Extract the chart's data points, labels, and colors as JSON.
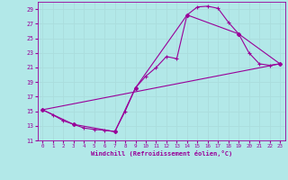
{
  "xlabel": "Windchill (Refroidissement éolien,°C)",
  "ylabel": "",
  "bg_color": "#b2e8e8",
  "line_color": "#990099",
  "grid_color": "#aadddd",
  "xlim": [
    -0.5,
    23.5
  ],
  "ylim": [
    11,
    30
  ],
  "xticks": [
    0,
    1,
    2,
    3,
    4,
    5,
    6,
    7,
    8,
    9,
    10,
    11,
    12,
    13,
    14,
    15,
    16,
    17,
    18,
    19,
    20,
    21,
    22,
    23
  ],
  "yticks": [
    11,
    13,
    15,
    17,
    19,
    21,
    23,
    25,
    27,
    29
  ],
  "line1_x": [
    0,
    1,
    2,
    3,
    4,
    5,
    6,
    7,
    8,
    9,
    10,
    11,
    12,
    13,
    14,
    15,
    16,
    17,
    18,
    19,
    20,
    21,
    22,
    23
  ],
  "line1_y": [
    15.2,
    14.5,
    13.7,
    13.2,
    12.7,
    12.5,
    12.4,
    12.2,
    15.0,
    18.2,
    19.8,
    21.0,
    22.5,
    22.2,
    28.2,
    29.3,
    29.4,
    29.1,
    27.2,
    25.6,
    23.0,
    21.5,
    21.3,
    21.5
  ],
  "line2_x": [
    0,
    3,
    7,
    9,
    14,
    19,
    23
  ],
  "line2_y": [
    15.2,
    13.2,
    12.2,
    18.2,
    28.2,
    25.6,
    21.5
  ],
  "line3_x": [
    0,
    23
  ],
  "line3_y": [
    15.2,
    21.5
  ]
}
